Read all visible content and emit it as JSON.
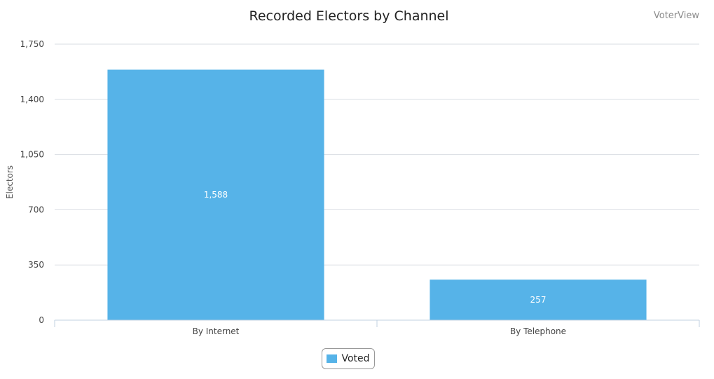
{
  "chart_data": {
    "type": "bar",
    "title": "Recorded Electors by Channel",
    "credit": "VoterView",
    "xlabel": "",
    "ylabel": "Electors",
    "categories": [
      "By Internet",
      "By Telephone"
    ],
    "series": [
      {
        "name": "Voted",
        "values": [
          1588,
          257
        ],
        "data_labels": [
          "1,588",
          "257"
        ]
      }
    ],
    "ylim": [
      0,
      1750
    ],
    "yticks": [
      0,
      350,
      700,
      1050,
      1400,
      1750
    ],
    "ytick_labels": [
      "0",
      "350",
      "700",
      "1,050",
      "1,400",
      "1,750"
    ],
    "grid": true,
    "legend_position": "bottom-center",
    "colors": {
      "bar": "#56b3e8",
      "grid": "#d9dde3",
      "axis": "#c0d0e0"
    }
  }
}
